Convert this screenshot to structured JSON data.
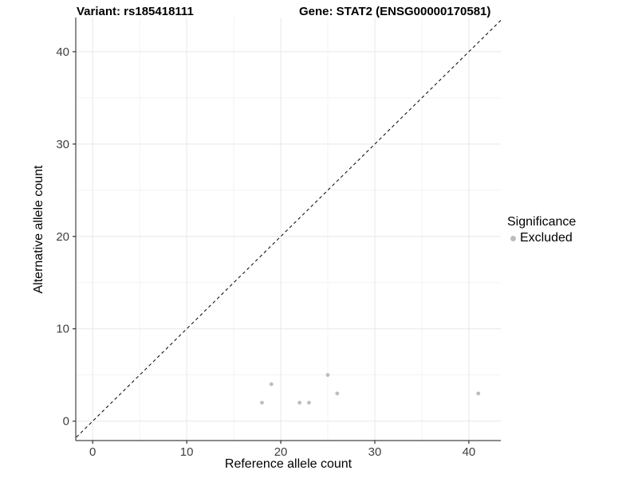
{
  "chart_data": {
    "type": "scatter",
    "title_left": "Variant: rs185418111",
    "title_right": "Gene: STAT2 (ENSG00000170581)",
    "xlabel": "Reference allele count",
    "ylabel": "Alternative allele count",
    "xlim": [
      -1.8,
      43.4
    ],
    "ylim": [
      -2.1,
      43.7
    ],
    "x_ticks": [
      0,
      10,
      20,
      30,
      40
    ],
    "y_ticks": [
      0,
      10,
      20,
      30,
      40
    ],
    "x_minor_ticks": [
      5,
      15,
      25,
      35
    ],
    "y_minor_ticks": [
      5,
      15,
      25,
      35
    ],
    "grid": true,
    "reference_line": {
      "type": "identity",
      "slope": 1,
      "intercept": 0,
      "style": "dashed",
      "color": "#000000"
    },
    "series": [
      {
        "name": "Excluded",
        "color": "#bdbdbd",
        "points": [
          [
            18,
            2
          ],
          [
            19,
            4
          ],
          [
            22,
            2
          ],
          [
            23,
            2
          ],
          [
            25,
            5
          ],
          [
            26,
            3
          ],
          [
            41,
            3
          ]
        ]
      }
    ],
    "legend": {
      "title": "Significance",
      "position": "right",
      "items": [
        {
          "label": "Excluded",
          "color": "#bdbdbd"
        }
      ]
    },
    "colors": {
      "background": "#ffffff",
      "grid_major": "#e7e7e7",
      "grid_minor": "#f3f3f3",
      "axis_line": "#444444",
      "tick_mark": "#333333",
      "tick_label": "#404040",
      "point": "#bdbdbd"
    }
  }
}
